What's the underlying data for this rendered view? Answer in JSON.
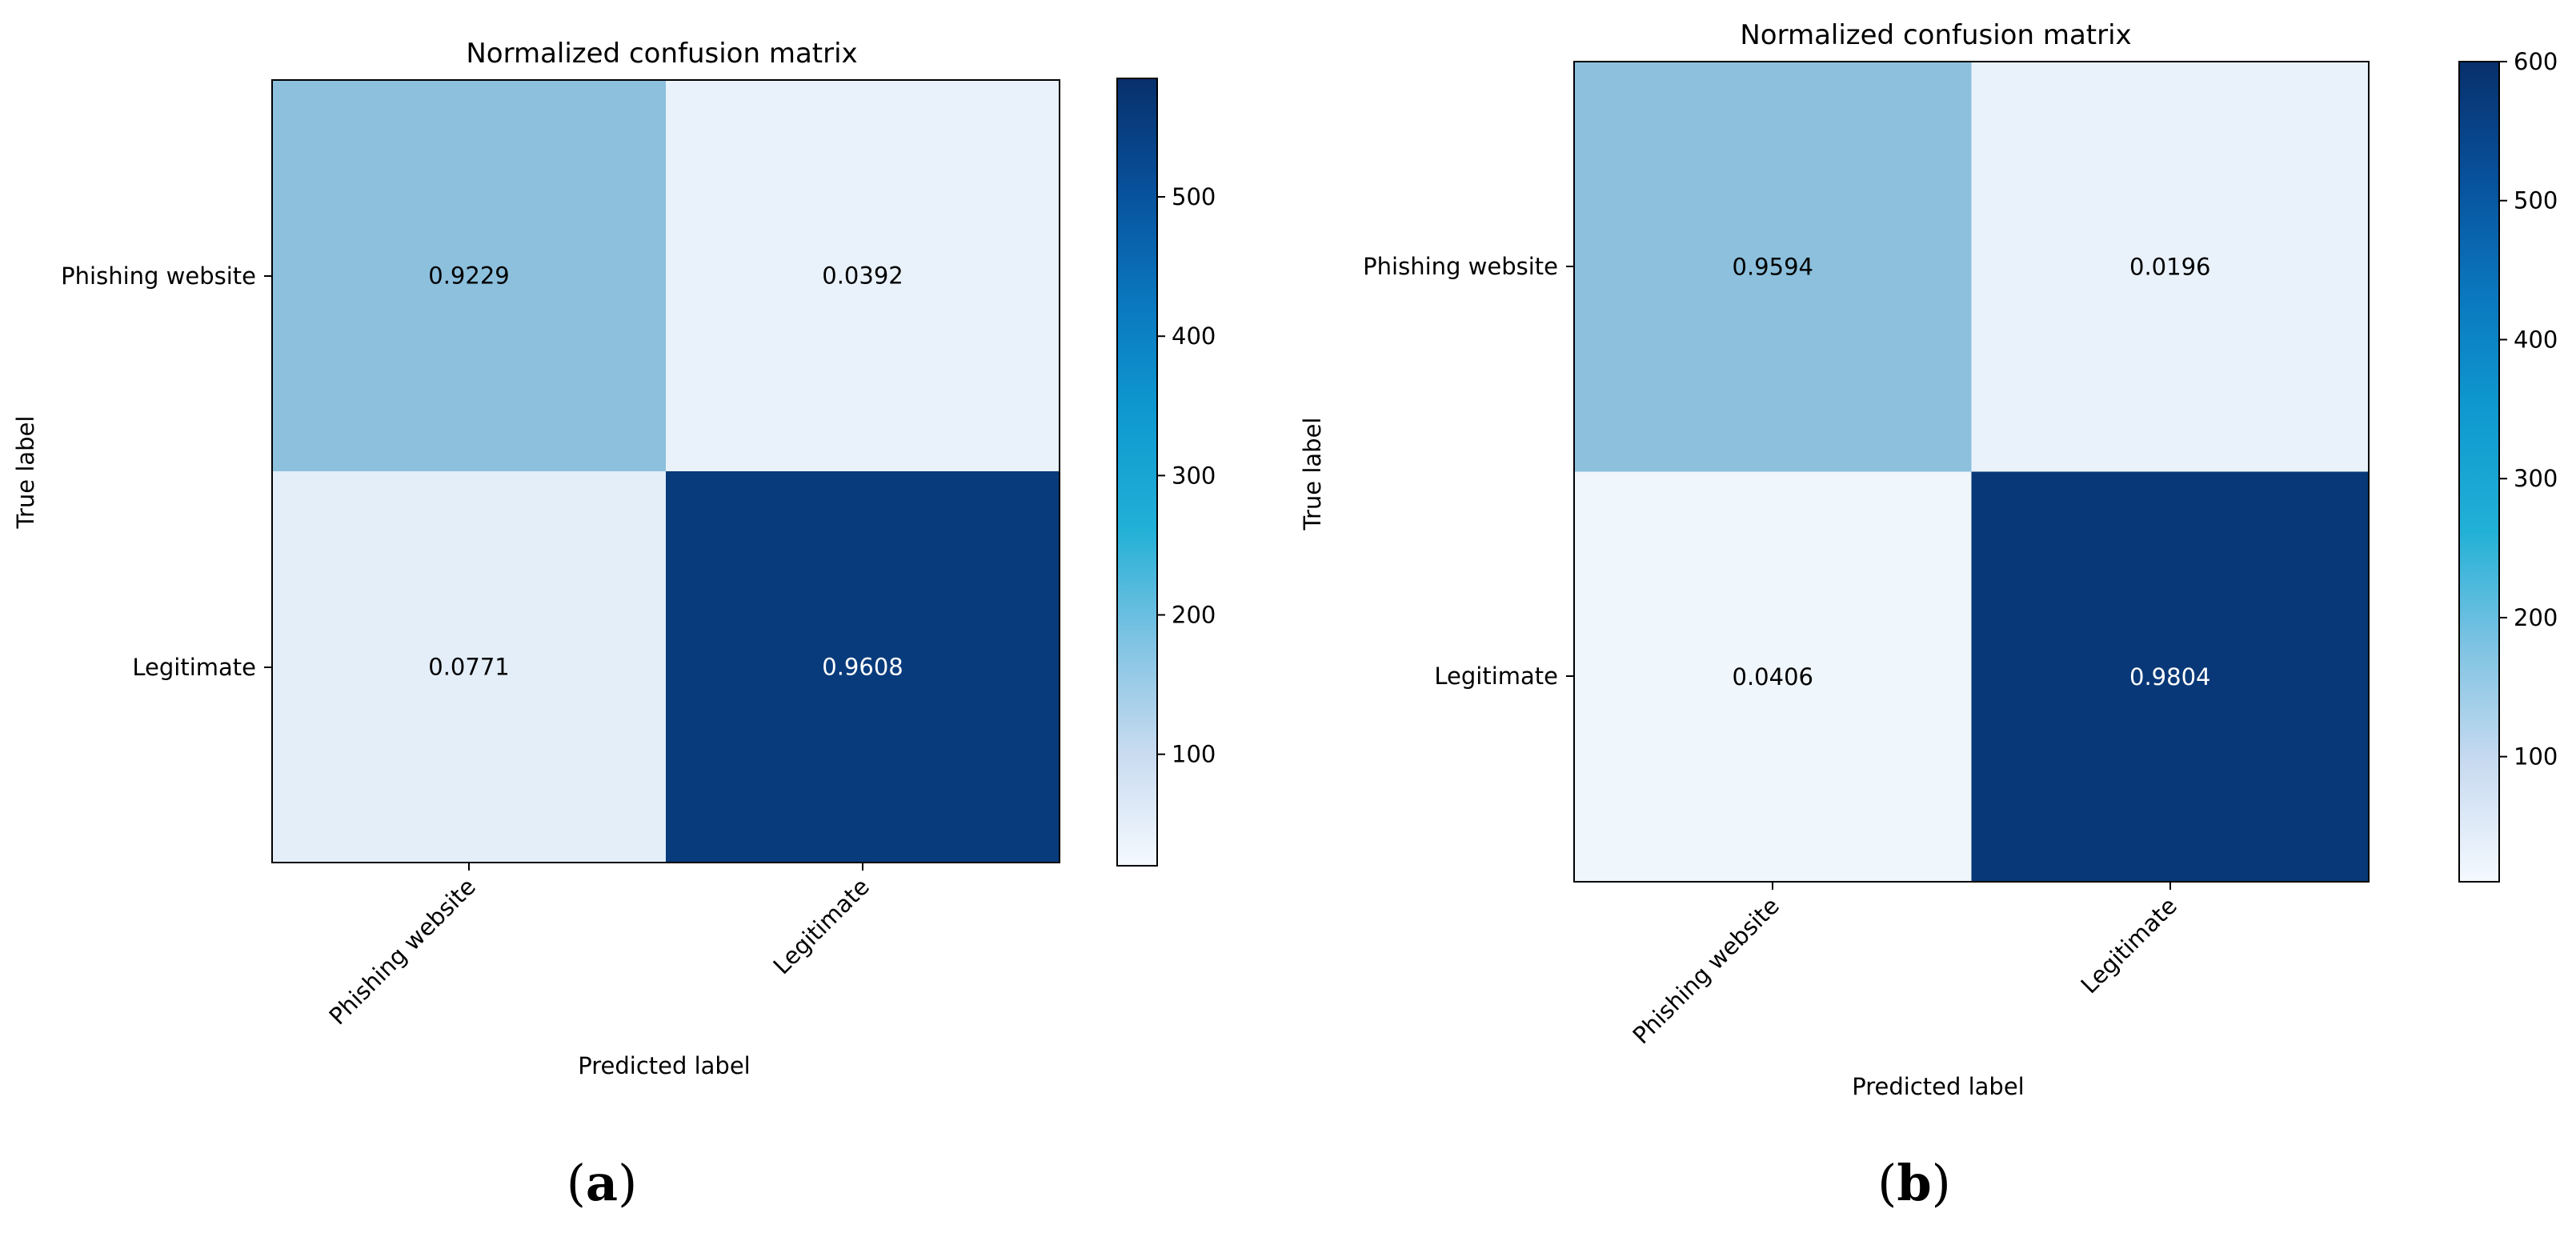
{
  "chart_data": [
    {
      "type": "heatmap",
      "panel_label": "(a)",
      "panel_letter": "a",
      "title": "Normalized confusion matrix",
      "xlabel": "Predicted label",
      "ylabel": "True label",
      "x_categories": [
        "Phishing website",
        "Legitimate"
      ],
      "y_categories": [
        "Phishing website",
        "Legitimate"
      ],
      "values": [
        [
          0.9229,
          0.0392
        ],
        [
          0.0771,
          0.9608
        ]
      ],
      "cell_text": [
        [
          "0.9229",
          "0.0392"
        ],
        [
          "0.0771",
          "0.9608"
        ]
      ],
      "color_scale": [
        0.42,
        0.07,
        0.1,
        0.96
      ],
      "colorbar": {
        "min": 20,
        "max": 585,
        "ticks": [
          100,
          200,
          300,
          400,
          500
        ],
        "tick_labels": [
          "100",
          "200",
          "300",
          "400",
          "500"
        ]
      },
      "colormap": "Blues"
    },
    {
      "type": "heatmap",
      "panel_label": "(b)",
      "panel_letter": "b",
      "title": "Normalized confusion matrix",
      "xlabel": "Predicted label",
      "ylabel": "True label",
      "x_categories": [
        "Phishing website",
        "Legitimate"
      ],
      "y_categories": [
        "Phishing website",
        "Legitimate"
      ],
      "values": [
        [
          0.9594,
          0.0196
        ],
        [
          0.0406,
          0.9804
        ]
      ],
      "cell_text": [
        [
          "0.9594",
          "0.0196"
        ],
        [
          "0.0406",
          "0.9804"
        ]
      ],
      "color_scale": [
        0.42,
        0.07,
        0.04,
        0.97
      ],
      "colorbar": {
        "min": 10,
        "max": 600,
        "ticks": [
          100,
          200,
          300,
          400,
          500,
          600
        ],
        "tick_labels": [
          "100",
          "200",
          "300",
          "400",
          "500",
          "600"
        ]
      },
      "colormap": "Blues"
    }
  ],
  "colors": {
    "blues_stops": [
      "#f7fbff",
      "#deebf7",
      "#c6dbef",
      "#9ecae1",
      "#6baed6",
      "#4292c6",
      "#2171b5",
      "#08519c",
      "#08306b"
    ],
    "colorbar_stops": [
      "#f4f9ff",
      "#c9dbf0",
      "#7fc3e3",
      "#21b0d6",
      "#0f9ad0",
      "#0a78bf",
      "#08519c",
      "#08306b"
    ],
    "text_dark": "#000000",
    "text_light": "#ffffff",
    "frame": "#000000"
  }
}
